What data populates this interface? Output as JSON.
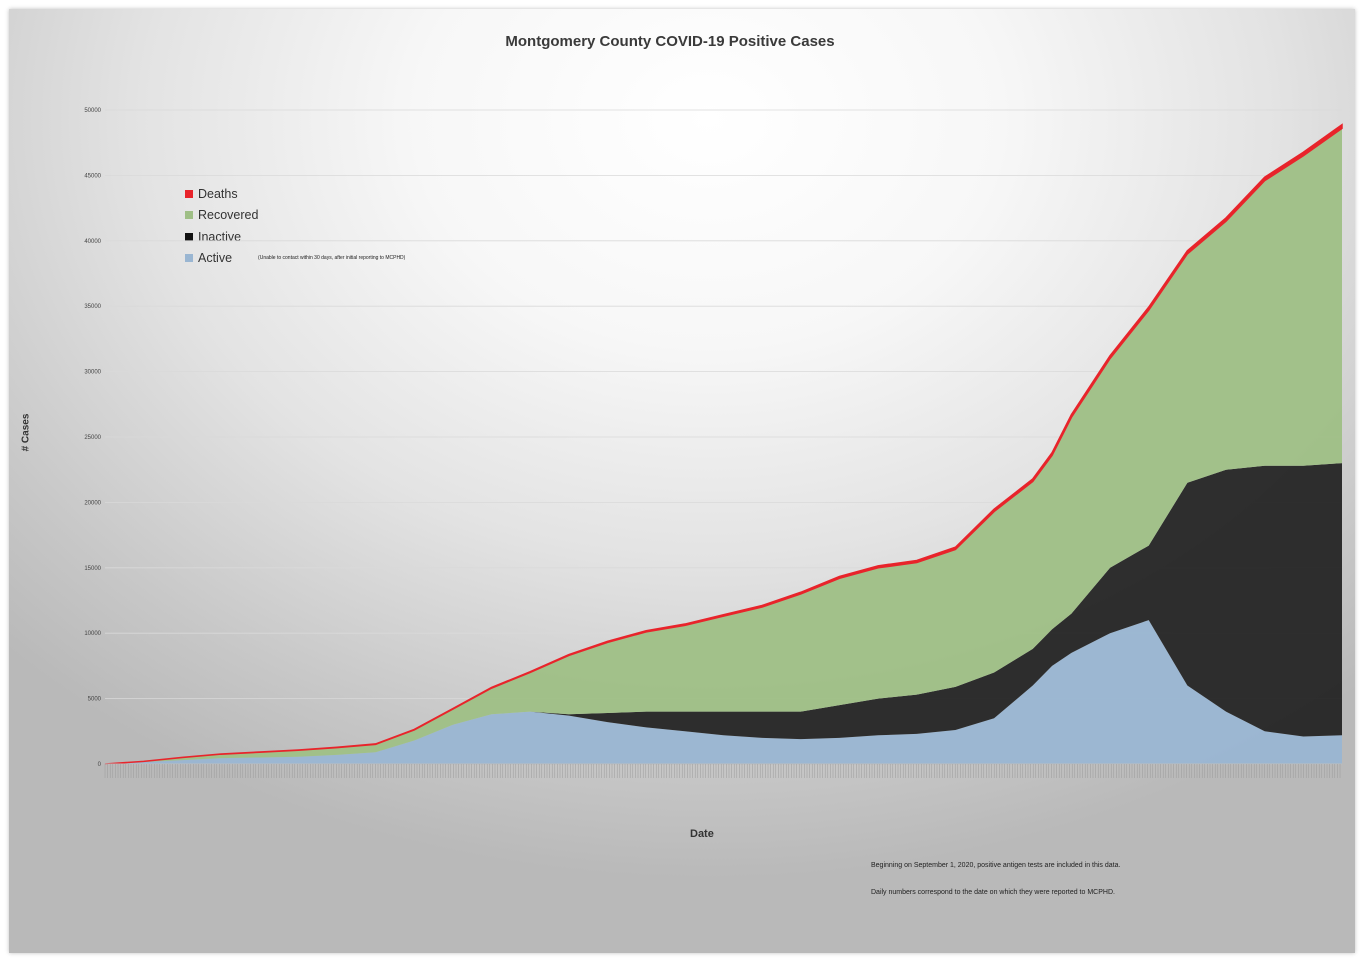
{
  "chart_data": {
    "type": "area",
    "stacked": true,
    "title": "Montgomery County COVID-19 Positive Cases",
    "xlabel": "Date",
    "ylabel": "# Cases",
    "ylim": [
      0,
      50000
    ],
    "yticks": [
      0,
      5000,
      10000,
      15000,
      20000,
      25000,
      30000,
      35000,
      40000,
      45000,
      50000
    ],
    "grid": true,
    "legend_position": "top-left",
    "legend_note": "(Unable to contact within 30 days, after initial reporting to MCPHD)",
    "notes": [
      "Beginning on September 1, 2020, positive antigen tests are included in this data.",
      "Daily numbers correspond to the date on which they were reported to MCPHD."
    ],
    "colors": {
      "Deaths": "#e8242b",
      "Recovered": "#9fbf86",
      "Inactive": "#262626",
      "Active": "#9ab6d2"
    },
    "x": [
      0,
      10,
      20,
      30,
      40,
      50,
      60,
      70,
      80,
      90,
      100,
      110,
      120,
      130,
      140,
      150,
      160,
      170,
      180,
      190,
      200,
      210,
      220,
      230,
      240,
      245,
      250,
      260,
      270,
      280,
      290,
      300,
      310,
      320
    ],
    "series": [
      {
        "name": "Active",
        "values": [
          0,
          150,
          300,
          450,
          500,
          550,
          700,
          900,
          1800,
          3000,
          3800,
          4000,
          3700,
          3200,
          2800,
          2500,
          2200,
          2000,
          1900,
          2000,
          2200,
          2300,
          2600,
          3500,
          6000,
          7500,
          8500,
          10000,
          11000,
          6000,
          4000,
          2500,
          2100,
          2200
        ]
      },
      {
        "name": "Inactive",
        "values": [
          0,
          0,
          0,
          0,
          0,
          0,
          0,
          0,
          0,
          0,
          0,
          0,
          100,
          700,
          1200,
          1500,
          1800,
          2000,
          2100,
          2500,
          2800,
          3000,
          3300,
          3500,
          2800,
          2800,
          3000,
          5000,
          5700,
          15500,
          18500,
          20300,
          20700,
          20800
        ]
      },
      {
        "name": "Recovered",
        "values": [
          0,
          50,
          200,
          300,
          400,
          500,
          550,
          600,
          800,
          1200,
          2000,
          3000,
          4500,
          5400,
          6100,
          6600,
          7300,
          8000,
          9000,
          9700,
          10000,
          10100,
          10500,
          12300,
          12800,
          13300,
          15000,
          16000,
          18000,
          17500,
          19000,
          21800,
          23700,
          25600
        ]
      },
      {
        "name": "Deaths",
        "values": [
          0,
          5,
          10,
          15,
          20,
          25,
          30,
          35,
          40,
          45,
          50,
          60,
          70,
          80,
          90,
          100,
          110,
          120,
          130,
          140,
          150,
          160,
          170,
          180,
          190,
          200,
          210,
          220,
          230,
          240,
          250,
          260,
          270,
          280
        ]
      }
    ]
  }
}
